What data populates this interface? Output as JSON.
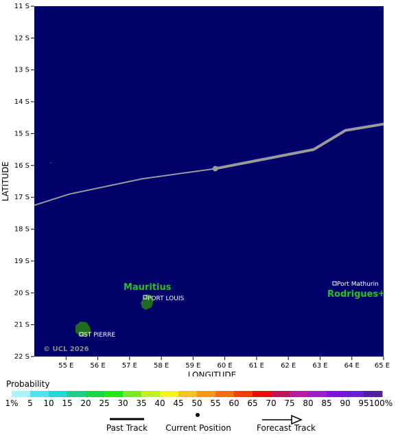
{
  "map": {
    "ocean_color": "#00006b",
    "land_color": "#1f6b1f",
    "track_color": "#9b9b9b",
    "copyright": "© UCL 2026",
    "y_axis_title": "LATITUDE",
    "x_axis_title": "LONGITUDE",
    "lat_ticks": [
      "11 S",
      "12 S",
      "13 S",
      "14 S",
      "15 S",
      "16 S",
      "17 S",
      "18 S",
      "19 S",
      "20 S",
      "21 S",
      "22 S"
    ],
    "lon_ticks": [
      "55 E",
      "56 E",
      "57 E",
      "58 E",
      "59 E",
      "60 E",
      "61 E",
      "62 E",
      "63 E",
      "64 E",
      "65 E"
    ],
    "islands": [
      {
        "name": "Mauritius",
        "label_color": "#27c21f"
      },
      {
        "name": "Rodrigues",
        "label_color": "#27c21f"
      }
    ],
    "places": [
      {
        "name": "PORT LOUIS"
      },
      {
        "name": "ST PIERRE"
      },
      {
        "name": "Port Mathurin"
      }
    ],
    "track_points": [
      {
        "lon": 54.0,
        "lat": -17.25
      },
      {
        "lon": 55.1,
        "lat": -16.9
      },
      {
        "lon": 57.4,
        "lat": -16.42
      },
      {
        "lon": 59.7,
        "lat": -16.1
      },
      {
        "lon": 62.8,
        "lat": -15.5
      },
      {
        "lon": 63.8,
        "lat": -14.9
      },
      {
        "lon": 65.0,
        "lat": -14.7
      }
    ],
    "current_position": {
      "lon": 59.7,
      "lat": -16.1
    }
  },
  "legend": {
    "title": "Probability",
    "scale_labels": [
      "1%",
      "5",
      "10",
      "15",
      "20",
      "25",
      "30",
      "35",
      "40",
      "45",
      "50",
      "55",
      "60",
      "65",
      "70",
      "75",
      "80",
      "85",
      "90",
      "95",
      "100%"
    ],
    "colors": [
      "#a5f5ff",
      "#4de4f0",
      "#1ed8d8",
      "#1ecf8a",
      "#13d94a",
      "#1fe81f",
      "#7ce81f",
      "#c2ef1f",
      "#f5f51f",
      "#f5c21f",
      "#f59b13",
      "#f56d13",
      "#f53a0d",
      "#e80d0d",
      "#c2135a",
      "#b51f9b",
      "#9b1fc2",
      "#7d13e0",
      "#6a1fd8",
      "#52209b"
    ],
    "past_track_label": "Past Track",
    "current_position_label": "Current Position",
    "forecast_track_label": "Forecast Track"
  }
}
